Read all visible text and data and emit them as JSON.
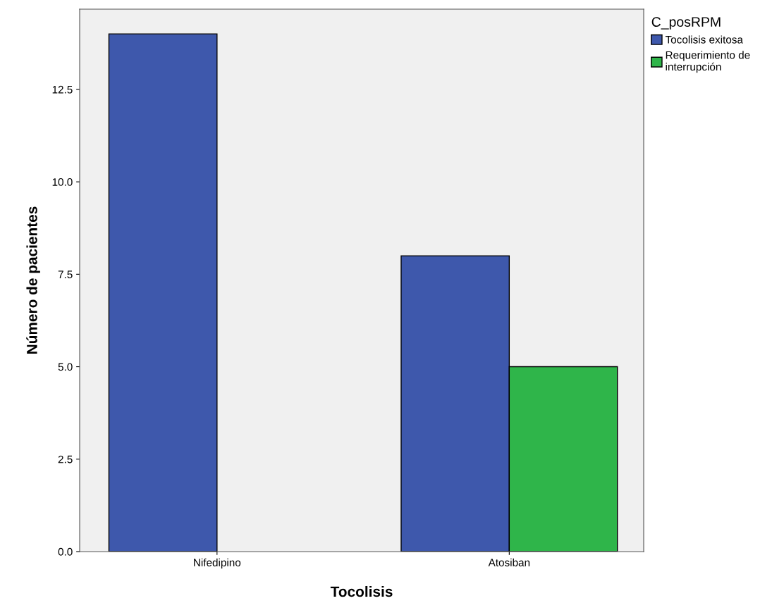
{
  "chart_data": {
    "type": "bar",
    "xlabel": "Tocolisis",
    "ylabel": "Número de pacientes",
    "legend_title": "C_posRPM",
    "categories": [
      "Nifedipino",
      "Atosiban"
    ],
    "series": [
      {
        "name": "Tocolisis exitosa",
        "color": "#3e58ac",
        "values": [
          14,
          8
        ]
      },
      {
        "name": "Requerimiento de\ninterrupción",
        "color": "#2fb54a",
        "values": [
          null,
          5
        ]
      }
    ],
    "ylim": [
      0,
      14.67
    ],
    "yticks": [
      {
        "value": 0,
        "label": "0.0"
      },
      {
        "value": 2.5,
        "label": "2.5"
      },
      {
        "value": 5,
        "label": "5.0"
      },
      {
        "value": 7.5,
        "label": "7.5"
      },
      {
        "value": 10,
        "label": "10.0"
      },
      {
        "value": 12.5,
        "label": "12.5"
      }
    ],
    "grid": false,
    "legend": "top right"
  }
}
